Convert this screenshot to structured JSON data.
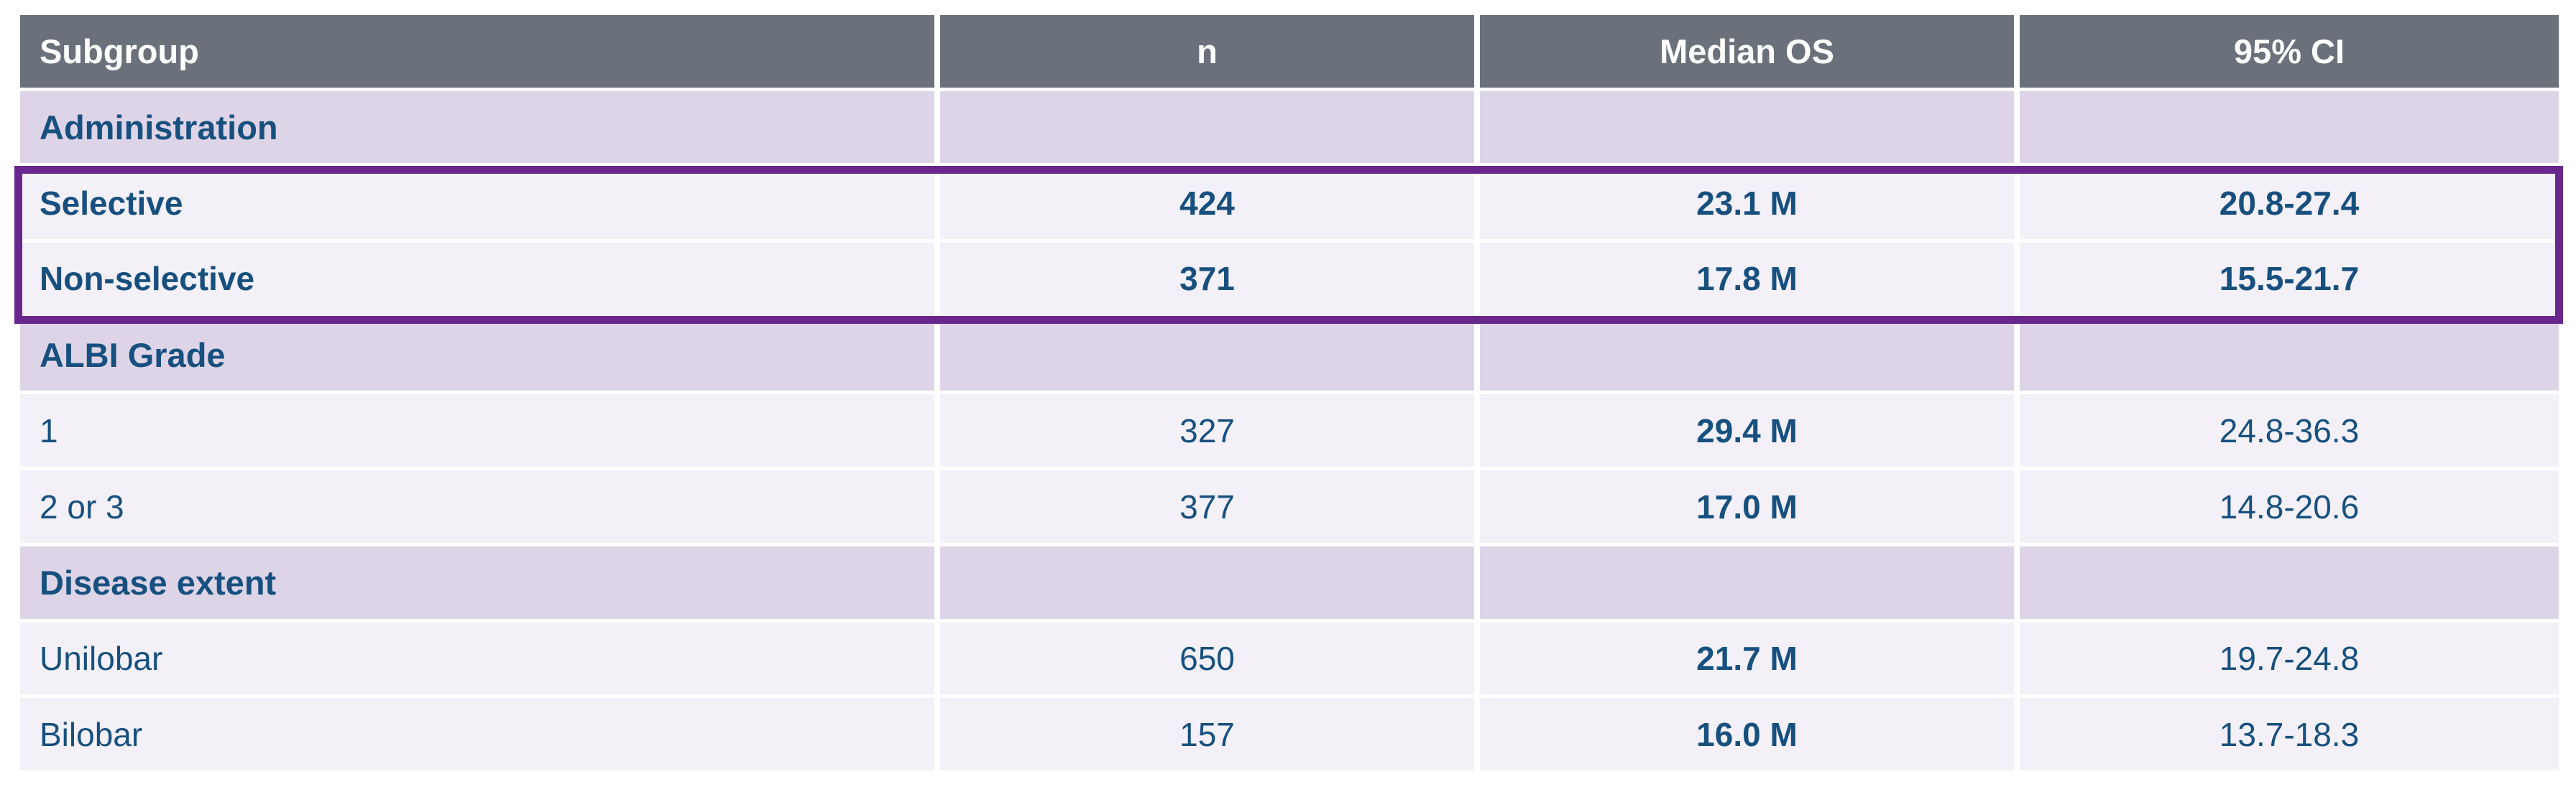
{
  "colors": {
    "header_bg": "#6a717a",
    "header_text": "#ffffff",
    "section_row_bg": "#ddd5e7",
    "data_row_bg": "#f3f0f8",
    "text_blue": "#17507e",
    "highlight_border": "#67278d",
    "separator": "#ffffff"
  },
  "chart_data": {
    "type": "table",
    "columns": [
      "Subgroup",
      "n",
      "Median OS",
      "95% CI"
    ],
    "rows": [
      {
        "kind": "section",
        "highlighted": false,
        "subgroup": "Administration",
        "n": "",
        "median_os": "",
        "ci": ""
      },
      {
        "kind": "data",
        "highlighted": true,
        "subgroup": "Selective",
        "n": "424",
        "median_os": "23.1 M",
        "ci": "20.8-27.4"
      },
      {
        "kind": "data",
        "highlighted": true,
        "subgroup": "Non-selective",
        "n": "371",
        "median_os": "17.8 M",
        "ci": "15.5-21.7"
      },
      {
        "kind": "section",
        "highlighted": false,
        "subgroup": "ALBI Grade",
        "n": "",
        "median_os": "",
        "ci": ""
      },
      {
        "kind": "data",
        "highlighted": false,
        "subgroup": "1",
        "n": "327",
        "median_os": "29.4 M",
        "ci": "24.8-36.3"
      },
      {
        "kind": "data",
        "highlighted": false,
        "subgroup": "2 or 3",
        "n": "377",
        "median_os": "17.0 M",
        "ci": "14.8-20.6"
      },
      {
        "kind": "section",
        "highlighted": false,
        "subgroup": "Disease extent",
        "n": "",
        "median_os": "",
        "ci": ""
      },
      {
        "kind": "data",
        "highlighted": false,
        "subgroup": "Unilobar",
        "n": "650",
        "median_os": "21.7 M",
        "ci": "19.7-24.8"
      },
      {
        "kind": "data",
        "highlighted": false,
        "subgroup": "Bilobar",
        "n": "157",
        "median_os": "16.0 M",
        "ci": "13.7-18.3"
      }
    ],
    "annotations": [
      "Purple outline box highlights the Administration subgroup rows: Selective and Non-selective"
    ]
  }
}
